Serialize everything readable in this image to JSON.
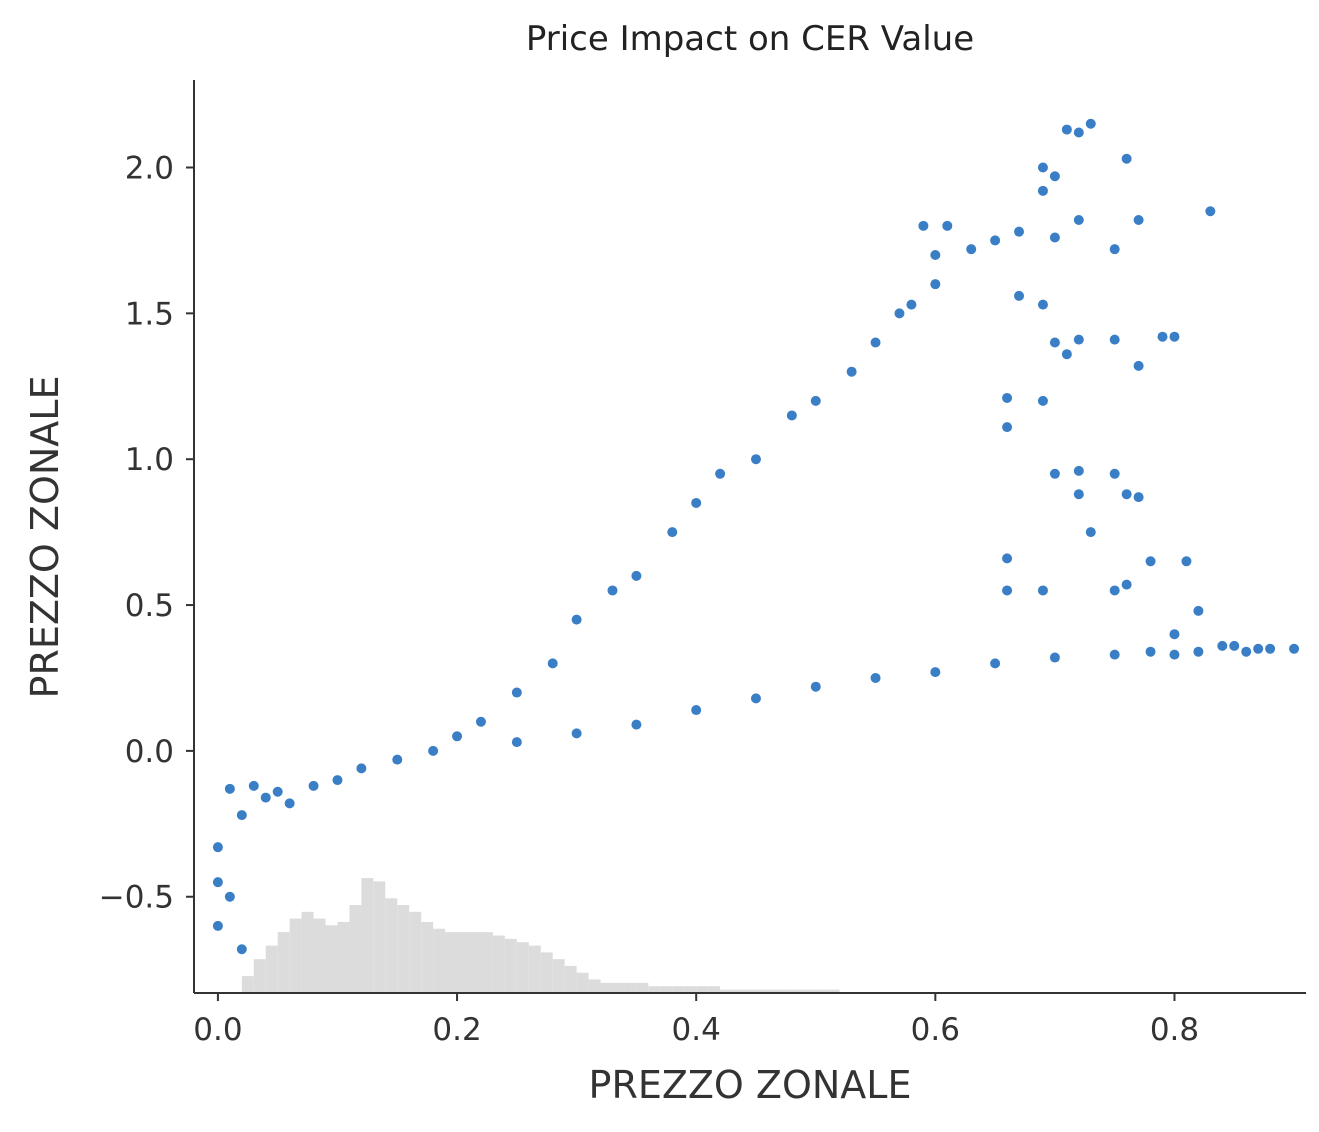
{
  "chart_data": {
    "type": "scatter",
    "title": "Price Impact on CER Value",
    "xlabel": "PREZZO ZONALE",
    "ylabel": "PREZZO ZONALE",
    "xlim": [
      -0.02,
      0.91
    ],
    "ylim": [
      -0.83,
      2.3
    ],
    "x_ticks": [
      {
        "value": 0.0,
        "label": "0.0"
      },
      {
        "value": 0.2,
        "label": "0.2"
      },
      {
        "value": 0.4,
        "label": "0.4"
      },
      {
        "value": 0.6,
        "label": "0.6"
      },
      {
        "value": 0.8,
        "label": "0.8"
      }
    ],
    "y_ticks": [
      {
        "value": -0.5,
        "label": "−0.5"
      },
      {
        "value": 0.0,
        "label": "0.0"
      },
      {
        "value": 0.5,
        "label": "0.5"
      },
      {
        "value": 1.0,
        "label": "1.0"
      },
      {
        "value": 1.5,
        "label": "1.5"
      },
      {
        "value": 2.0,
        "label": "2.0"
      }
    ],
    "grid": false,
    "point_color": "#3a7fc6",
    "histogram_color": "#dcdcdc",
    "series": [
      {
        "points": [
          [
            0.0,
            -0.33
          ],
          [
            0.0,
            -0.45
          ],
          [
            0.0,
            -0.6
          ],
          [
            0.01,
            -0.13
          ],
          [
            0.01,
            -0.5
          ],
          [
            0.02,
            -0.68
          ],
          [
            0.02,
            -0.22
          ],
          [
            0.03,
            -0.12
          ],
          [
            0.04,
            -0.16
          ],
          [
            0.05,
            -0.14
          ],
          [
            0.06,
            -0.18
          ],
          [
            0.08,
            -0.12
          ],
          [
            0.1,
            -0.1
          ],
          [
            0.12,
            -0.06
          ],
          [
            0.15,
            -0.03
          ],
          [
            0.18,
            0.0
          ],
          [
            0.2,
            0.05
          ],
          [
            0.22,
            0.1
          ],
          [
            0.25,
            0.2
          ],
          [
            0.28,
            0.3
          ],
          [
            0.3,
            0.45
          ],
          [
            0.33,
            0.55
          ],
          [
            0.35,
            0.6
          ],
          [
            0.38,
            0.75
          ],
          [
            0.4,
            0.85
          ],
          [
            0.42,
            0.95
          ],
          [
            0.45,
            1.0
          ],
          [
            0.48,
            1.15
          ],
          [
            0.5,
            1.2
          ],
          [
            0.53,
            1.3
          ],
          [
            0.55,
            1.4
          ],
          [
            0.57,
            1.5
          ],
          [
            0.58,
            1.53
          ],
          [
            0.6,
            1.6
          ],
          [
            0.6,
            1.7
          ],
          [
            0.59,
            1.8
          ],
          [
            0.61,
            1.8
          ],
          [
            0.63,
            1.72
          ],
          [
            0.65,
            1.75
          ],
          [
            0.67,
            1.78
          ],
          [
            0.69,
            2.0
          ],
          [
            0.69,
            1.92
          ],
          [
            0.7,
            1.97
          ],
          [
            0.7,
            1.76
          ],
          [
            0.71,
            2.13
          ],
          [
            0.72,
            2.12
          ],
          [
            0.73,
            2.15
          ],
          [
            0.72,
            1.82
          ],
          [
            0.75,
            1.72
          ],
          [
            0.76,
            2.03
          ],
          [
            0.77,
            1.82
          ],
          [
            0.83,
            1.85
          ],
          [
            0.67,
            1.56
          ],
          [
            0.69,
            1.53
          ],
          [
            0.7,
            1.4
          ],
          [
            0.71,
            1.36
          ],
          [
            0.72,
            1.41
          ],
          [
            0.75,
            1.41
          ],
          [
            0.77,
            1.32
          ],
          [
            0.79,
            1.42
          ],
          [
            0.8,
            1.42
          ],
          [
            0.66,
            1.21
          ],
          [
            0.66,
            1.11
          ],
          [
            0.69,
            1.2
          ],
          [
            0.7,
            0.95
          ],
          [
            0.72,
            0.96
          ],
          [
            0.72,
            0.88
          ],
          [
            0.73,
            0.75
          ],
          [
            0.75,
            0.95
          ],
          [
            0.76,
            0.88
          ],
          [
            0.77,
            0.87
          ],
          [
            0.78,
            0.65
          ],
          [
            0.81,
            0.65
          ],
          [
            0.82,
            0.48
          ],
          [
            0.66,
            0.66
          ],
          [
            0.66,
            0.55
          ],
          [
            0.69,
            0.55
          ],
          [
            0.75,
            0.55
          ],
          [
            0.76,
            0.57
          ],
          [
            0.8,
            0.4
          ],
          [
            0.85,
            0.36
          ],
          [
            0.87,
            0.35
          ],
          [
            0.88,
            0.35
          ],
          [
            0.9,
            0.35
          ],
          [
            0.86,
            0.34
          ],
          [
            0.84,
            0.36
          ],
          [
            0.82,
            0.34
          ],
          [
            0.8,
            0.33
          ],
          [
            0.78,
            0.34
          ],
          [
            0.75,
            0.33
          ],
          [
            0.7,
            0.32
          ],
          [
            0.65,
            0.3
          ],
          [
            0.6,
            0.27
          ],
          [
            0.55,
            0.25
          ],
          [
            0.5,
            0.22
          ],
          [
            0.45,
            0.18
          ],
          [
            0.4,
            0.14
          ],
          [
            0.35,
            0.09
          ],
          [
            0.3,
            0.06
          ],
          [
            0.25,
            0.03
          ]
        ]
      }
    ],
    "marginal_histogram": {
      "bin_start": 0.02,
      "bin_width": 0.01,
      "counts": [
        5,
        10,
        14,
        18,
        22,
        24,
        22,
        20,
        21,
        26,
        34,
        33,
        28,
        26,
        24,
        21,
        19,
        18,
        18,
        18,
        18,
        17,
        16,
        15,
        14,
        12,
        10,
        8,
        6,
        4,
        3,
        3,
        3,
        3,
        2,
        2,
        2,
        2,
        2,
        2,
        1,
        1,
        1,
        1,
        1,
        1,
        1,
        1,
        1,
        1
      ]
    }
  }
}
